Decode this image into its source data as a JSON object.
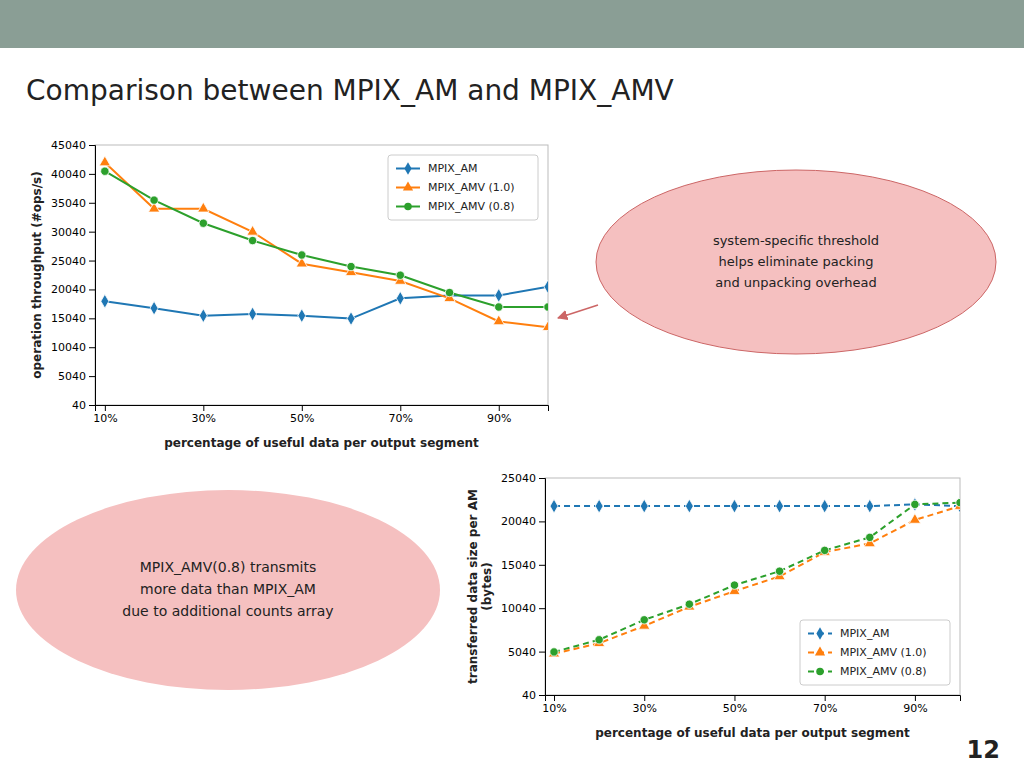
{
  "title": "Comparison between MPIX_AM and MPIX_AMV",
  "slide_number": "12",
  "chart_data": [
    {
      "type": "line",
      "x_label": "percentage of useful data per output segment",
      "y_label": "operation throughput (#ops/s)",
      "x": [
        10,
        20,
        30,
        40,
        50,
        60,
        70,
        80,
        90,
        100
      ],
      "xlim": [
        8,
        100
      ],
      "xticks": [
        {
          "value": 10,
          "label": "10%"
        },
        {
          "value": 30,
          "label": "30%"
        },
        {
          "value": 50,
          "label": "50%"
        },
        {
          "value": 70,
          "label": "70%"
        },
        {
          "value": 90,
          "label": "90%"
        }
      ],
      "ylim": [
        40,
        45040
      ],
      "yticks": [
        40,
        5040,
        10040,
        15040,
        20040,
        25040,
        30040,
        35040,
        40040,
        45040
      ],
      "grid": false,
      "legend": "upper right",
      "series": [
        {
          "name": "MPIX_AM",
          "marker": "diamond",
          "line_style": "solid",
          "values": [
            18000,
            16800,
            15500,
            15800,
            15500,
            15000,
            18500,
            19000,
            19000,
            20500
          ]
        },
        {
          "name": "MPIX_AMV (1.0)",
          "marker": "triangle",
          "line_style": "solid",
          "values": [
            42000,
            34000,
            34000,
            30000,
            24500,
            23000,
            21500,
            18500,
            14500,
            13500
          ]
        },
        {
          "name": "MPIX_AMV (0.8)",
          "marker": "circle",
          "line_style": "solid",
          "values": [
            40500,
            35500,
            31500,
            28500,
            26000,
            24000,
            22500,
            19500,
            17000,
            17000
          ]
        }
      ],
      "annotation": "system-specific threshold\nhelps eliminate packing\nand unpacking overhead"
    },
    {
      "type": "line",
      "x_label": "percentage of useful data per output segment",
      "y_label": "transferred data size per AM\n(bytes)",
      "x": [
        10,
        20,
        30,
        40,
        50,
        60,
        70,
        80,
        90,
        100
      ],
      "xlim": [
        8,
        100
      ],
      "xticks": [
        {
          "value": 10,
          "label": "10%"
        },
        {
          "value": 30,
          "label": "30%"
        },
        {
          "value": 50,
          "label": "50%"
        },
        {
          "value": 70,
          "label": "70%"
        },
        {
          "value": 90,
          "label": "90%"
        }
      ],
      "ylim": [
        40,
        25040
      ],
      "yticks": [
        40,
        5040,
        10040,
        15040,
        20040,
        25040
      ],
      "grid": false,
      "legend": "lower right",
      "series": [
        {
          "name": "MPIX_AM",
          "marker": "diamond",
          "line_style": "dashed",
          "values": [
            21800,
            21800,
            21800,
            21800,
            21800,
            21800,
            21800,
            21800,
            22000,
            21800
          ]
        },
        {
          "name": "MPIX_AMV (1.0)",
          "marker": "triangle",
          "line_style": "dashed",
          "values": [
            4800,
            6000,
            8000,
            10200,
            12000,
            13700,
            16500,
            17500,
            20200,
            21800
          ]
        },
        {
          "name": "MPIX_AMV (0.8)",
          "marker": "circle",
          "line_style": "dashed",
          "values": [
            5000,
            6400,
            8700,
            10500,
            12700,
            14300,
            16700,
            18200,
            22000,
            22200
          ]
        }
      ],
      "annotation": "MPIX_AMV(0.8) transmits\nmore data than MPIX_AM\ndue to additional counts array"
    }
  ]
}
